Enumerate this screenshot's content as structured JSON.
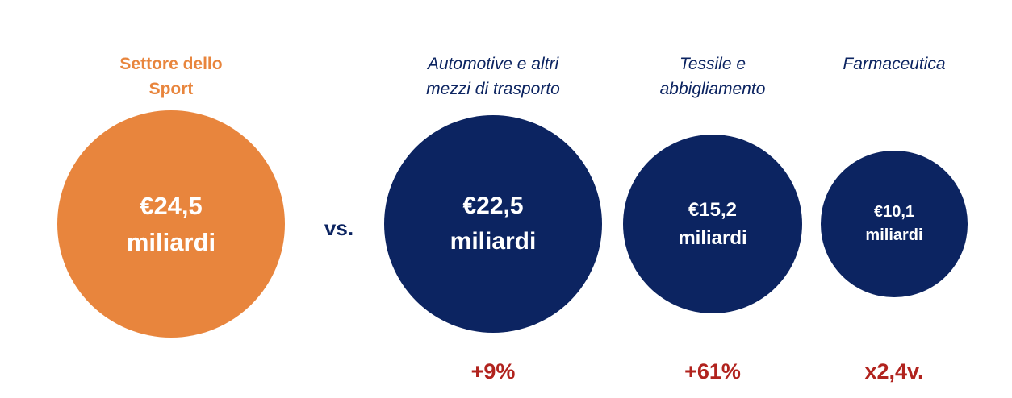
{
  "chart_data": {
    "type": "bubble",
    "comparison_label": "vs.",
    "colors": {
      "highlight": "#E8853D",
      "normal": "#0C2461",
      "delta": "#B1231E"
    },
    "items": [
      {
        "label_lines": [
          "Settore dello",
          "Sport"
        ],
        "value": 24.5,
        "value_text": "€24,5",
        "unit_text": "miliardi",
        "highlight": true,
        "delta": ""
      },
      {
        "label_lines": [
          "Automotive e altri",
          "mezzi di trasporto"
        ],
        "value": 22.5,
        "value_text": "€22,5",
        "unit_text": "miliardi",
        "highlight": false,
        "delta": "+9%"
      },
      {
        "label_lines": [
          "Tessile e",
          "abbigliamento"
        ],
        "value": 15.2,
        "value_text": "€15,2",
        "unit_text": "miliardi",
        "highlight": false,
        "delta": "+61%"
      },
      {
        "label_lines": [
          "Farmaceutica"
        ],
        "value": 10.1,
        "value_text": "€10,1",
        "unit_text": "miliardi",
        "highlight": false,
        "delta": "x2,4v."
      }
    ]
  }
}
